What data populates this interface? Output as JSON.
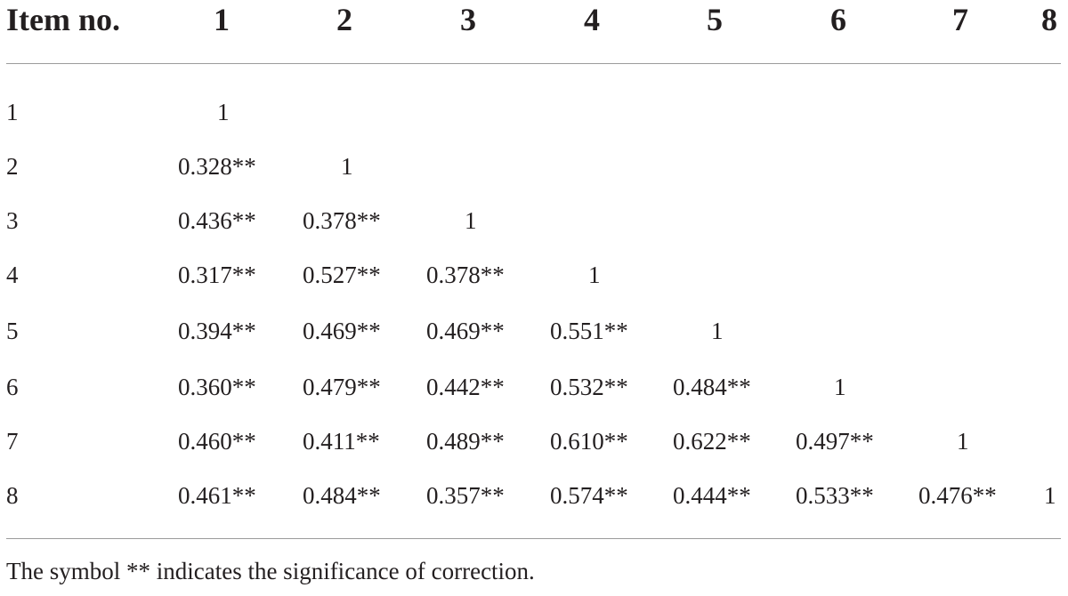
{
  "table": {
    "header": {
      "label": "Item no.",
      "columns": [
        "1",
        "2",
        "3",
        "4",
        "5",
        "6",
        "7",
        "8"
      ]
    },
    "rows": [
      {
        "label": "1",
        "cells": [
          "1",
          "",
          "",
          "",
          "",
          "",
          "",
          ""
        ]
      },
      {
        "label": "2",
        "cells": [
          "0.328**",
          "1",
          "",
          "",
          "",
          "",
          "",
          ""
        ]
      },
      {
        "label": "3",
        "cells": [
          "0.436**",
          "0.378**",
          "1",
          "",
          "",
          "",
          "",
          ""
        ]
      },
      {
        "label": "4",
        "cells": [
          "0.317**",
          "0.527**",
          "0.378**",
          "1",
          "",
          "",
          "",
          ""
        ]
      },
      {
        "label": "5",
        "cells": [
          "0.394**",
          "0.469**",
          "0.469**",
          "0.551**",
          "1",
          "",
          "",
          ""
        ]
      },
      {
        "label": "6",
        "cells": [
          "0.360**",
          "0.479**",
          "0.442**",
          "0.532**",
          "0.484**",
          "1",
          "",
          ""
        ]
      },
      {
        "label": "7",
        "cells": [
          "0.460**",
          "0.411**",
          "0.489**",
          "0.610**",
          "0.622**",
          "0.497**",
          "1",
          ""
        ]
      },
      {
        "label": "8",
        "cells": [
          "0.461**",
          "0.484**",
          "0.357**",
          "0.574**",
          "0.444**",
          "0.533**",
          "0.476**",
          "1"
        ]
      }
    ],
    "footnote": "The symbol ** indicates the significance of correction."
  }
}
